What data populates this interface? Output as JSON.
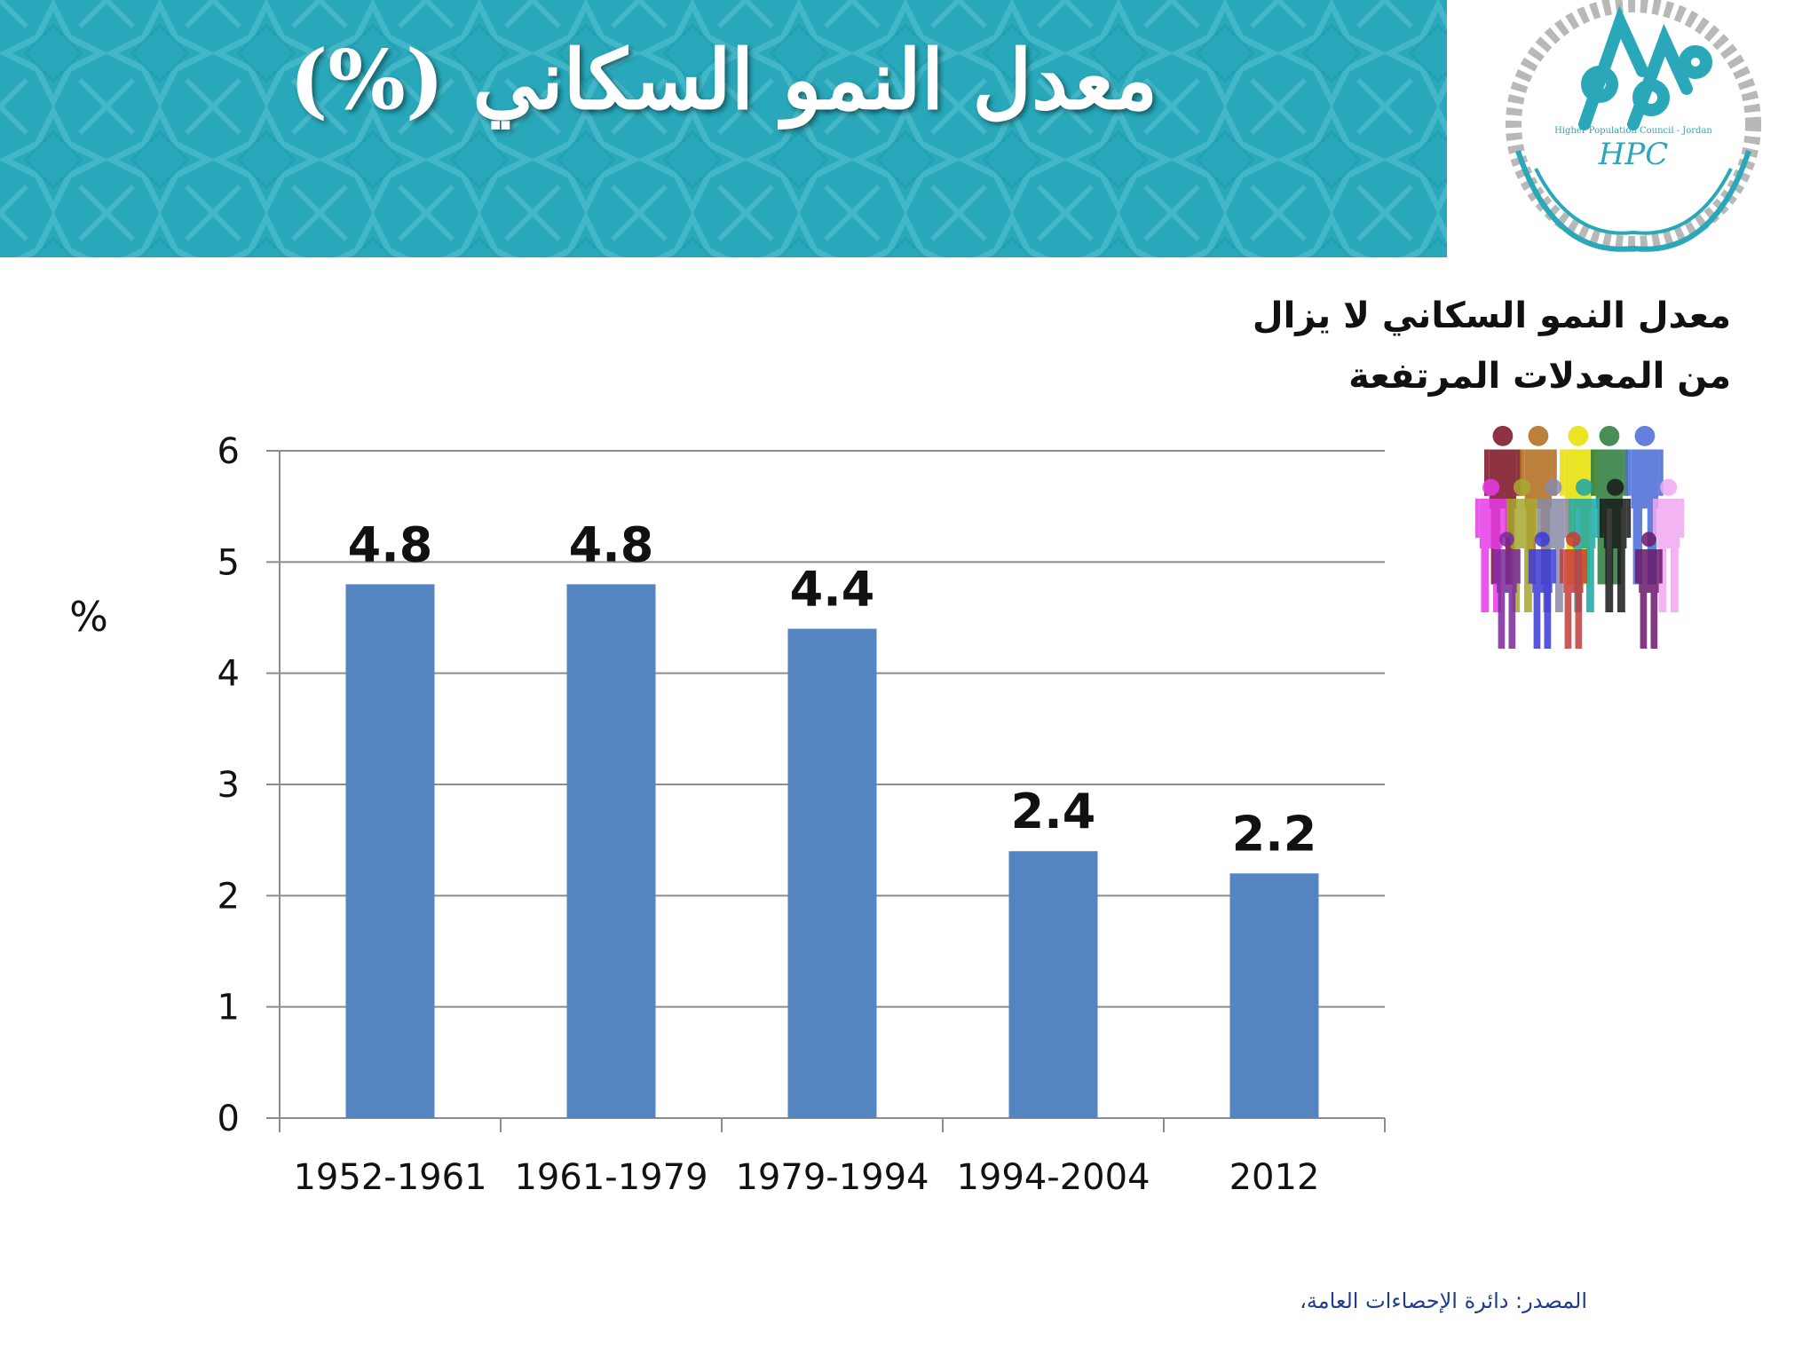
{
  "slide": {
    "title": "معدل النمو السكاني (%)",
    "subtitle_lines": [
      "معدل النمو السكاني لا يزال",
      "من المعدلات المرتفعة"
    ],
    "source": "المصدر: دائرة الإحصاءات العامة،",
    "banner_color": "#29a9ba",
    "logo": {
      "icon": "hpc-logo",
      "text_latin": "HPC",
      "text_small": "Higher Population Council - Jordan"
    }
  },
  "chart_data": {
    "type": "bar",
    "categories": [
      "1952-1961",
      "1961-1979",
      "1979-1994",
      "1994-2004",
      "2012"
    ],
    "values": [
      4.8,
      4.8,
      4.4,
      2.4,
      2.2
    ],
    "data_labels": [
      "4.8",
      "4.8",
      "4.4",
      "2.4",
      "2.2"
    ],
    "ylabel": "%",
    "xlabel": "",
    "ylim": [
      0,
      6
    ],
    "yticks": [
      0,
      1,
      2,
      3,
      4,
      5,
      6
    ],
    "grid": true,
    "bar_color": "#5585c0"
  }
}
